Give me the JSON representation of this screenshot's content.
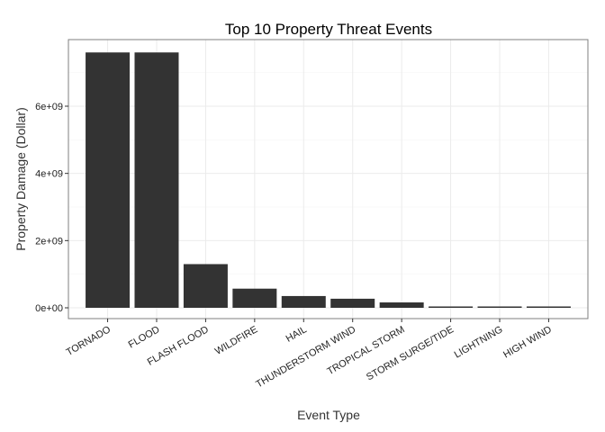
{
  "chart_data": {
    "type": "bar",
    "title": "Top 10 Property Threat Events",
    "xlabel": "Event Type",
    "ylabel": "Property Damage (Dollar)",
    "categories": [
      "TORNADO",
      "FLOOD",
      "FLASH FLOOD",
      "WILDFIRE",
      "HAIL",
      "THUNDERSTORM WIND",
      "TROPICAL STORM",
      "STORM SURGE/TIDE",
      "LIGHTNING",
      "HIGH WIND"
    ],
    "values": [
      7600000000,
      7600000000,
      1300000000,
      570000000,
      350000000,
      270000000,
      160000000,
      40000000,
      40000000,
      40000000
    ],
    "yticks": [
      0,
      2000000000,
      4000000000,
      6000000000
    ],
    "ytick_labels": [
      "0e+00",
      "2e+09",
      "4e+09",
      "6e+09"
    ],
    "ylim": [
      0,
      8000000000
    ],
    "grid": true,
    "colors": {
      "bar": "#333333",
      "grid": "#ebebeb",
      "panel_border": "#7f7f7f"
    }
  }
}
